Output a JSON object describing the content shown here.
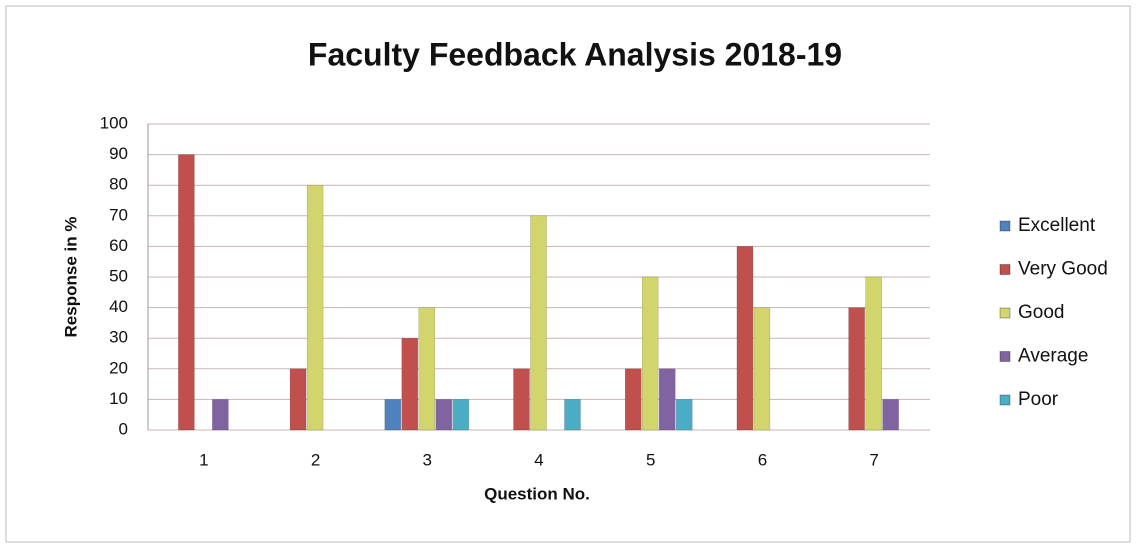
{
  "chart_data": {
    "type": "bar",
    "title": "Faculty Feedback Analysis 2018-19",
    "x_label": "Question No.",
    "y_label": "Response in %",
    "categories": [
      "1",
      "2",
      "3",
      "4",
      "5",
      "6",
      "7"
    ],
    "series": [
      {
        "name": "Excellent",
        "color": "#4f81bd",
        "values": [
          0,
          0,
          10,
          0,
          0,
          0,
          0
        ]
      },
      {
        "name": "Very Good",
        "color": "#c0504d",
        "values": [
          90,
          20,
          30,
          20,
          20,
          60,
          40
        ]
      },
      {
        "name": "Good",
        "color": "#d2d46c",
        "values": [
          0,
          80,
          40,
          70,
          50,
          40,
          50
        ]
      },
      {
        "name": "Average",
        "color": "#8064a2",
        "values": [
          10,
          0,
          10,
          0,
          20,
          0,
          10
        ]
      },
      {
        "name": "Poor",
        "color": "#4bacc6",
        "values": [
          0,
          0,
          10,
          10,
          10,
          0,
          0
        ]
      }
    ],
    "ylim": [
      0,
      100
    ],
    "yticks": [
      0,
      10,
      20,
      30,
      40,
      50,
      60,
      70,
      80,
      90,
      100
    ],
    "grid": true,
    "legend": "right"
  }
}
